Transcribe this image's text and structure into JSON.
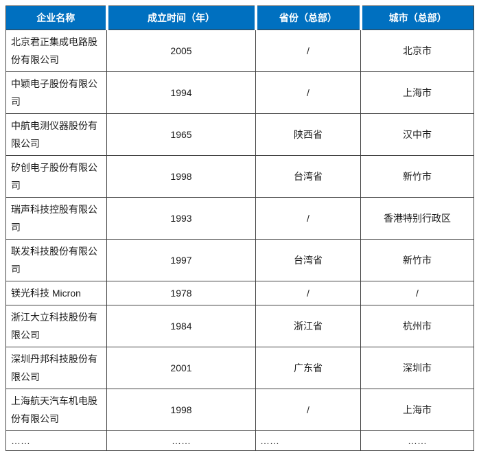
{
  "table": {
    "headers": [
      "企业名称",
      "成立时间（年）",
      "省份（总部）",
      "城市（总部）"
    ],
    "rows": [
      {
        "name": "北京君正集成电路股份有限公司",
        "year": "2005",
        "province": "/",
        "city": "北京市"
      },
      {
        "name": "中颖电子股份有限公司",
        "year": "1994",
        "province": "/",
        "city": "上海市"
      },
      {
        "name": "中航电测仪器股份有限公司",
        "year": "1965",
        "province": "陕西省",
        "city": "汉中市"
      },
      {
        "name": "矽创电子股份有限公司",
        "year": "1998",
        "province": "台湾省",
        "city": "新竹市"
      },
      {
        "name": "瑞声科技控股有限公司",
        "year": "1993",
        "province": "/",
        "city": "香港特别行政区"
      },
      {
        "name": "联发科技股份有限公司",
        "year": "1997",
        "province": "台湾省",
        "city": "新竹市"
      },
      {
        "name": "镁光科技 Micron",
        "year": "1978",
        "province": "/",
        "city": "/"
      },
      {
        "name": "浙江大立科技股份有限公司",
        "year": "1984",
        "province": "浙江省",
        "city": "杭州市"
      },
      {
        "name": "深圳丹邦科技股份有限公司",
        "year": "2001",
        "province": "广东省",
        "city": "深圳市"
      },
      {
        "name": "上海航天汽车机电股份有限公司",
        "year": "1998",
        "province": "/",
        "city": "上海市"
      },
      {
        "name": "……",
        "year": "……",
        "province": "……",
        "city": "……"
      }
    ],
    "colors": {
      "header_bg": "#0070C0",
      "header_text": "#FFFFFF",
      "border": "#404040",
      "body_text": "#1A1A1A"
    }
  }
}
